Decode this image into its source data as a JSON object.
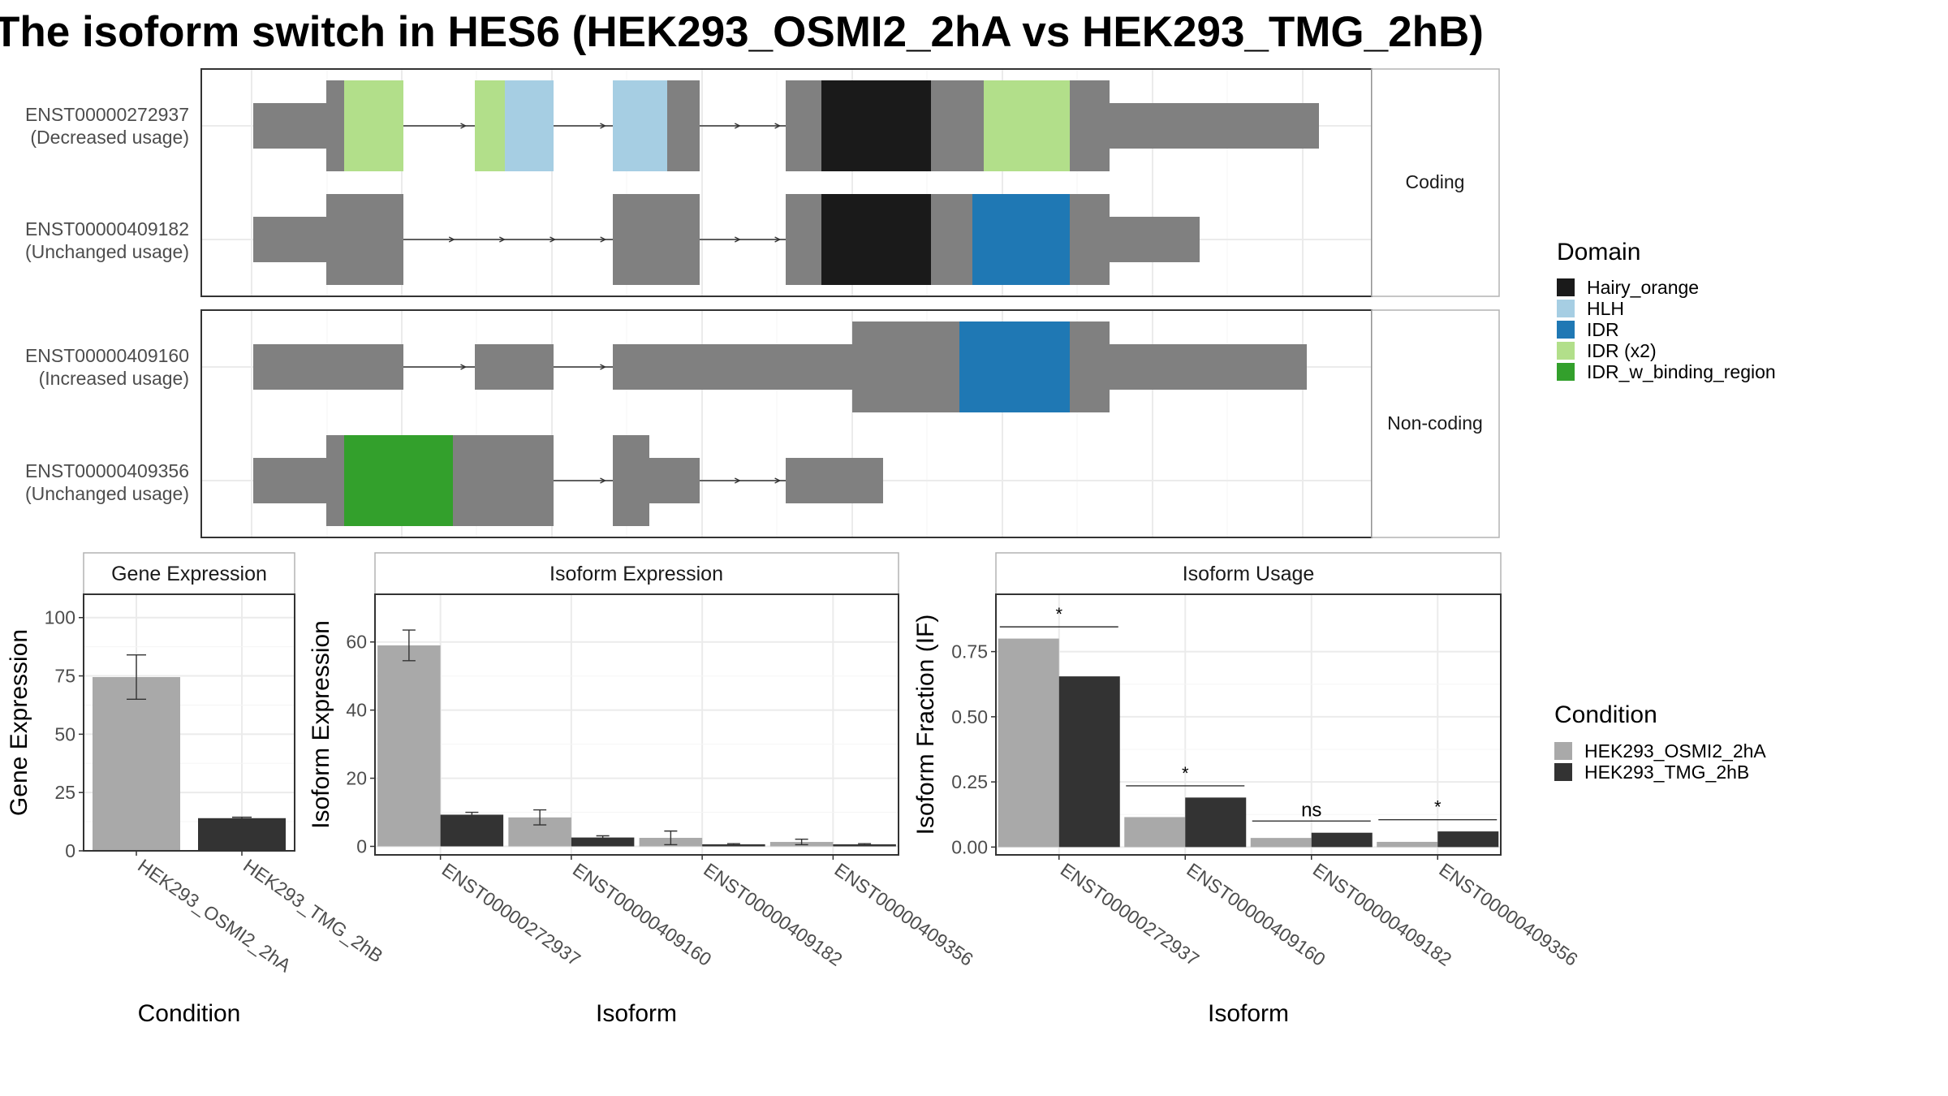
{
  "title": "The isoform switch in HES6 (HEK293_OSMI2_2hA vs HEK293_TMG_2hB)",
  "colors": {
    "exon": "#808080",
    "grid": "#ebebeb",
    "panel_border": "#333333",
    "strip_border": "#b3b3b3",
    "cond_a": "#a9a9a9",
    "cond_b": "#333333",
    "Hairy_orange": "#1a1a1a",
    "HLH": "#a6cee3",
    "IDR": "#1f78b4",
    "IDR (x2)": "#b2df8a",
    "IDR_w_binding_region": "#33a02c"
  },
  "facets": {
    "coding": "Coding",
    "noncoding": "Non-coding"
  },
  "isoforms": [
    {
      "id": "ENST00000272937",
      "usage": "(Decreased usage)"
    },
    {
      "id": "ENST00000409182",
      "usage": "(Unchanged usage)"
    },
    {
      "id": "ENST00000409160",
      "usage": "(Increased usage)"
    },
    {
      "id": "ENST00000409356",
      "usage": "(Unchanged usage)"
    }
  ],
  "domain_legend": {
    "title": "Domain",
    "items": [
      "Hairy_orange",
      "HLH",
      "IDR",
      "IDR (x2)",
      "IDR_w_binding_region"
    ]
  },
  "condition_legend": {
    "title": "Condition",
    "items": [
      "HEK293_OSMI2_2hA",
      "HEK293_TMG_2hB"
    ]
  },
  "chart_data": [
    {
      "type": "bar",
      "title": "Gene Expression",
      "xlabel": "Condition",
      "ylabel": "Gene Expression",
      "categories": [
        "HEK293_OSMI2_2hA",
        "HEK293_TMG_2hB"
      ],
      "values": [
        74.5,
        14
      ],
      "error_low": [
        65,
        13.6
      ],
      "error_high": [
        84,
        14.4
      ],
      "ylim": [
        0,
        110
      ],
      "yticks": [
        0,
        25,
        50,
        75,
        100
      ],
      "grid": true
    },
    {
      "type": "bar",
      "title": "Isoform Expression",
      "xlabel": "Isoform",
      "ylabel": "Isoform Expression",
      "categories": [
        "ENST00000272937",
        "ENST00000409160",
        "ENST00000409182",
        "ENST00000409356"
      ],
      "series": [
        {
          "name": "HEK293_OSMI2_2hA",
          "values": [
            59,
            8.5,
            2.5,
            1.3
          ],
          "error_low": [
            54.5,
            6.3,
            0.5,
            0.5
          ],
          "error_high": [
            63.5,
            10.7,
            4.5,
            2.1
          ]
        },
        {
          "name": "HEK293_TMG_2hB",
          "values": [
            9.3,
            2.6,
            0.6,
            0.6
          ],
          "error_low": [
            8.6,
            2.1,
            0.4,
            0.4
          ],
          "error_high": [
            10,
            3.1,
            0.8,
            0.8
          ]
        }
      ],
      "ylim": [
        -2.5,
        74
      ],
      "yticks": [
        0,
        20,
        40,
        60
      ],
      "grid": true
    },
    {
      "type": "bar",
      "title": "Isoform Usage",
      "xlabel": "Isoform",
      "ylabel": "Isoform Fraction (IF)",
      "categories": [
        "ENST00000272937",
        "ENST00000409160",
        "ENST00000409182",
        "ENST00000409356"
      ],
      "series": [
        {
          "name": "HEK293_OSMI2_2hA",
          "values": [
            0.8,
            0.115,
            0.035,
            0.02
          ]
        },
        {
          "name": "HEK293_TMG_2hB",
          "values": [
            0.655,
            0.19,
            0.055,
            0.06
          ]
        }
      ],
      "significance": [
        "*",
        "*",
        "ns",
        "*"
      ],
      "ylim": [
        -0.03,
        0.97
      ],
      "yticks": [
        0.0,
        0.25,
        0.5,
        0.75
      ],
      "ytick_labels": [
        "0.00",
        "0.25",
        "0.50",
        "0.75"
      ],
      "grid": true
    }
  ]
}
